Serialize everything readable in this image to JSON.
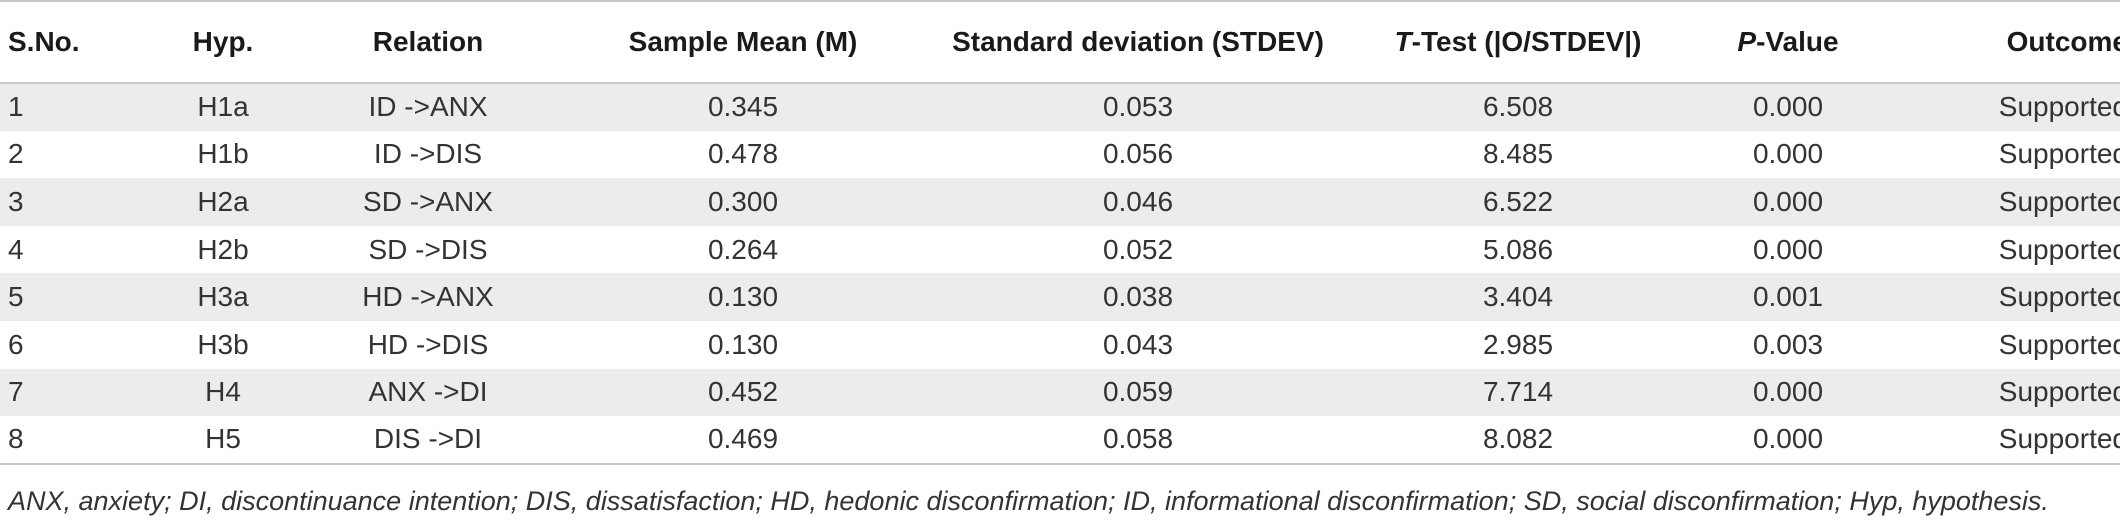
{
  "table": {
    "headers": {
      "sno": "S.No.",
      "hyp": "Hyp.",
      "relation": "Relation",
      "mean": "Sample Mean (M)",
      "sd": "Standard deviation (STDEV)",
      "t_italic": "T",
      "t_rest": "-Test (|O/STDEV|)",
      "p_italic": "P",
      "p_rest": "-Value",
      "outcome": "Outcome"
    },
    "rows": [
      {
        "sno": "1",
        "hyp": "H1a",
        "relation": "ID ->ANX",
        "mean": "0.345",
        "sd": "0.053",
        "t": "6.508",
        "p": "0.000",
        "outcome": "Supported"
      },
      {
        "sno": "2",
        "hyp": "H1b",
        "relation": "ID ->DIS",
        "mean": "0.478",
        "sd": "0.056",
        "t": "8.485",
        "p": "0.000",
        "outcome": "Supported"
      },
      {
        "sno": "3",
        "hyp": "H2a",
        "relation": "SD ->ANX",
        "mean": "0.300",
        "sd": "0.046",
        "t": "6.522",
        "p": "0.000",
        "outcome": "Supported"
      },
      {
        "sno": "4",
        "hyp": "H2b",
        "relation": "SD ->DIS",
        "mean": "0.264",
        "sd": "0.052",
        "t": "5.086",
        "p": "0.000",
        "outcome": "Supported"
      },
      {
        "sno": "5",
        "hyp": "H3a",
        "relation": "HD ->ANX",
        "mean": "0.130",
        "sd": "0.038",
        "t": "3.404",
        "p": "0.001",
        "outcome": "Supported"
      },
      {
        "sno": "6",
        "hyp": "H3b",
        "relation": "HD ->DIS",
        "mean": "0.130",
        "sd": "0.043",
        "t": "2.985",
        "p": "0.003",
        "outcome": "Supported"
      },
      {
        "sno": "7",
        "hyp": "H4",
        "relation": "ANX ->DI",
        "mean": "0.452",
        "sd": "0.059",
        "t": "7.714",
        "p": "0.000",
        "outcome": "Supported"
      },
      {
        "sno": "8",
        "hyp": "H5",
        "relation": "DIS ->DI",
        "mean": "0.469",
        "sd": "0.058",
        "t": "8.082",
        "p": "0.000",
        "outcome": "Supported"
      }
    ]
  },
  "footnote": "ANX, anxiety; DI, discontinuance intention; DIS, dissatisfaction; HD, hedonic disconfirmation; ID, informational disconfirmation; SD, social disconfirmation; Hyp, hypothesis."
}
